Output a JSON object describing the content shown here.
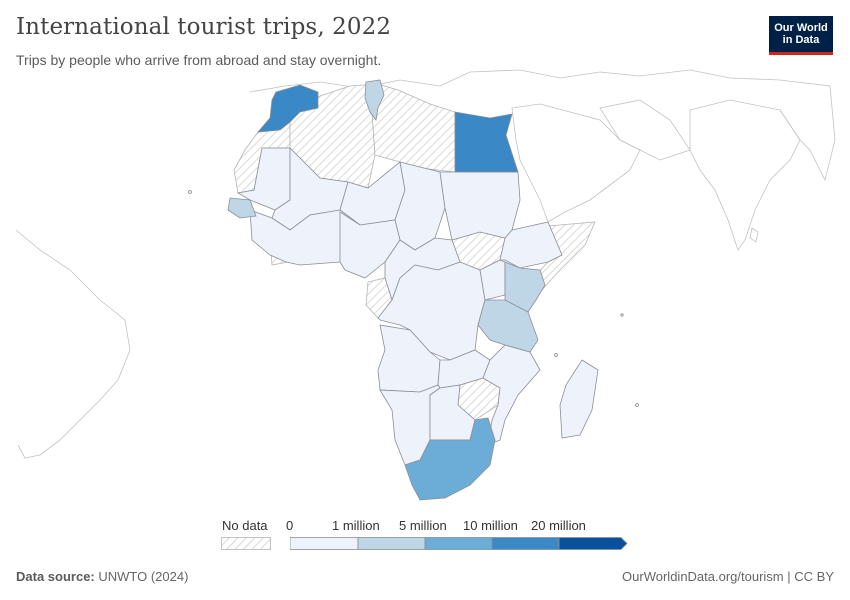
{
  "header": {
    "title": "International tourist trips, 2022",
    "subtitle": "Trips by people who arrive from abroad and stay overnight."
  },
  "logo": {
    "line1": "Our World",
    "line2": "in Data"
  },
  "legend": {
    "no_data_label": "No data",
    "bins": [
      {
        "label": "0",
        "color": "#eef2fb"
      },
      {
        "label": "1 million",
        "color": "#bfd6e6"
      },
      {
        "label": "5 million",
        "color": "#6badd6"
      },
      {
        "label": "10 million",
        "color": "#3a88c5"
      },
      {
        "label": "20 million",
        "color": "#08519c"
      }
    ]
  },
  "colors": {
    "no_data_hatch": "#d9d9d9",
    "bin_0": "#eef2fb",
    "bin_1m": "#bfd6e6",
    "bin_5m": "#6badd6",
    "bin_10m": "#3a88c5",
    "border": "#8a8f96",
    "outline": "#b5b5b5"
  },
  "map": {
    "region": "Africa",
    "year": "2022",
    "categories": {
      "10m_20m": [
        "Morocco",
        "Egypt"
      ],
      "5m_10m": [
        "South Africa"
      ],
      "1m_5m": [
        "Tunisia",
        "Senegal",
        "Kenya",
        "Tanzania"
      ],
      "0_1m": [
        "Mauritania",
        "Mali",
        "Niger",
        "Chad",
        "Sudan",
        "Nigeria",
        "Ethiopia",
        "Democratic Republic of the Congo",
        "Angola",
        "Namibia",
        "Botswana",
        "Zambia",
        "Mozambique",
        "Madagascar"
      ],
      "no_data": [
        "Algeria",
        "Libya",
        "Western Sahara",
        "South Sudan",
        "Somalia",
        "Zimbabwe",
        "Gabon",
        "Ghana"
      ]
    }
  },
  "footer": {
    "source_label": "Data source:",
    "source_value": "UNWTO (2024)",
    "url": "OurWorldinData.org/tourism",
    "license": "CC BY"
  }
}
